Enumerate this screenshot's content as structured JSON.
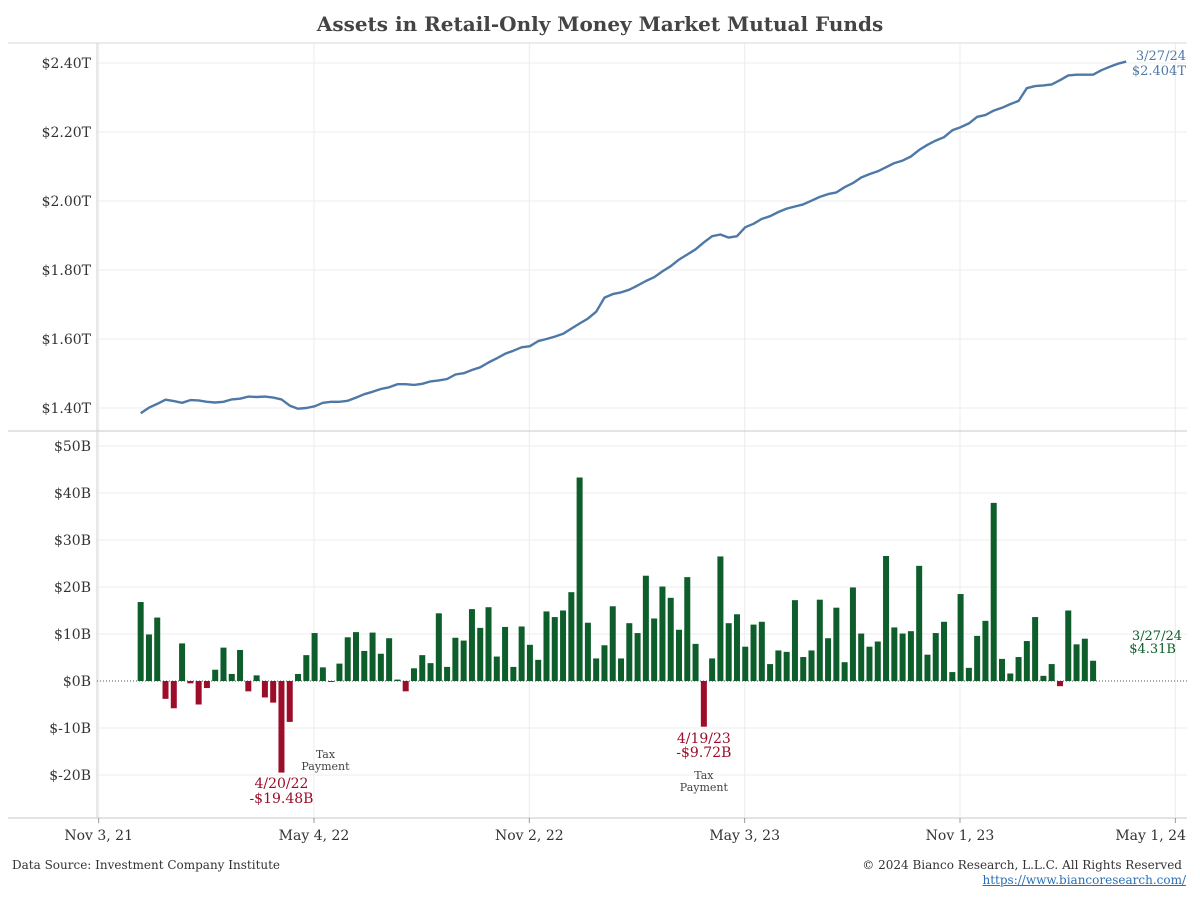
{
  "title": "Assets in Retail-Only Money Market Mutual Funds",
  "footer": {
    "source": "Data Source: Investment Company Institute",
    "copyright": "© 2024 Bianco Research, L.L.C. All Rights Reserved",
    "url": "https://www.biancoresearch.com/"
  },
  "colors": {
    "line": "#4e79a7",
    "positive": "#0d5e2a",
    "negative": "#9b0d28",
    "grid": "#ececec",
    "axis": "#888888"
  },
  "chart_data": [
    {
      "type": "line",
      "title": "Assets in Retail-Only Money Market Mutual Funds",
      "y_tick_labels": [
        "$1.40T",
        "$1.60T",
        "$1.80T",
        "$2.00T",
        "$2.20T",
        "$2.40T"
      ],
      "y_ticks": [
        1.4,
        1.6,
        1.8,
        2.0,
        2.2,
        2.4
      ],
      "ylim": [
        1.33,
        2.46
      ],
      "grid": true,
      "x_start": "2021-11-03",
      "series": [
        {
          "values": [
            1.385,
            1.401,
            1.412,
            1.424,
            1.42,
            1.415,
            1.423,
            1.422,
            1.418,
            1.416,
            1.418,
            1.425,
            1.427,
            1.433,
            1.432,
            1.433,
            1.43,
            1.425,
            1.407,
            1.398,
            1.4,
            1.405,
            1.415,
            1.418,
            1.418,
            1.421,
            1.43,
            1.44,
            1.447,
            1.455,
            1.46,
            1.469,
            1.469,
            1.467,
            1.47,
            1.477,
            1.48,
            1.484,
            1.497,
            1.501,
            1.51,
            1.518,
            1.532,
            1.544,
            1.557,
            1.566,
            1.576,
            1.579,
            1.594,
            1.6,
            1.607,
            1.615,
            1.63,
            1.645,
            1.659,
            1.679,
            1.72,
            1.73,
            1.735,
            1.743,
            1.755,
            1.768,
            1.779,
            1.796,
            1.811,
            1.83,
            1.845,
            1.86,
            1.88,
            1.898,
            1.903,
            1.894,
            1.898,
            1.924,
            1.934,
            1.948,
            1.956,
            1.968,
            1.978,
            1.984,
            1.99,
            2.001,
            2.012,
            2.02,
            2.025,
            2.04,
            2.052,
            2.068,
            2.078,
            2.086,
            2.098,
            2.11,
            2.117,
            2.129,
            2.148,
            2.163,
            2.175,
            2.185,
            2.205,
            2.214,
            2.225,
            2.244,
            2.249,
            2.262,
            2.27,
            2.281,
            2.29,
            2.327,
            2.333,
            2.335,
            2.338,
            2.35,
            2.364,
            2.366,
            2.366,
            2.366,
            2.379,
            2.389,
            2.398,
            2.404
          ]
        }
      ],
      "end_annotation": {
        "date": "3/27/24",
        "value": "$2.404T"
      }
    },
    {
      "type": "bar",
      "y_tick_labels": [
        "$-20B",
        "$-10B",
        "$0B",
        "$10B",
        "$20B",
        "$30B",
        "$40B",
        "$50B"
      ],
      "y_ticks": [
        -20,
        -10,
        0,
        10,
        20,
        30,
        40,
        50
      ],
      "ylim": [
        -29,
        52
      ],
      "grid": true,
      "x_tick_labels": [
        "Nov 3, 21",
        "May 4, 22",
        "Nov 2, 22",
        "May 3, 23",
        "Nov 1, 23",
        "May 1, 24"
      ],
      "x_ticks": [
        "2021-11-03",
        "2022-05-04",
        "2022-11-02",
        "2023-05-03",
        "2023-11-01",
        "2024-05-01"
      ],
      "x_start": "2021-11-03",
      "series": [
        {
          "values": [
            16.8,
            9.9,
            13.5,
            -3.8,
            -5.8,
            8.0,
            -0.5,
            -5.0,
            -1.5,
            2.4,
            7.1,
            1.5,
            6.6,
            -2.2,
            1.2,
            -3.5,
            -4.6,
            -19.48,
            -8.7,
            1.5,
            5.5,
            10.2,
            2.9,
            -0.2,
            3.7,
            9.3,
            10.4,
            6.4,
            10.3,
            5.8,
            9.1,
            0.3,
            -2.2,
            2.7,
            5.5,
            3.8,
            14.4,
            3.0,
            9.2,
            8.6,
            15.3,
            11.3,
            15.7,
            5.2,
            11.5,
            3.0,
            11.6,
            7.7,
            4.5,
            14.8,
            13.6,
            15.0,
            18.9,
            43.3,
            12.4,
            4.8,
            7.6,
            15.9,
            4.8,
            12.3,
            10.2,
            22.4,
            13.3,
            20.1,
            17.7,
            10.9,
            22.1,
            7.9,
            -9.72,
            4.8,
            26.5,
            12.3,
            14.2,
            7.3,
            12.0,
            12.6,
            3.6,
            6.5,
            6.2,
            17.2,
            5.1,
            6.5,
            17.3,
            9.1,
            15.6,
            4.0,
            19.9,
            10.1,
            7.3,
            8.4,
            26.6,
            11.4,
            10.1,
            10.6,
            24.5,
            5.6,
            10.2,
            12.6,
            1.9,
            18.5,
            2.8,
            9.6,
            12.8,
            37.9,
            4.7,
            1.6,
            5.1,
            8.5,
            13.6,
            1.1,
            3.6,
            -1.1,
            15.0,
            7.8,
            9.0,
            4.31
          ]
        }
      ],
      "annotations": [
        {
          "label": "4/20/22",
          "value": "-$19.48B",
          "note": "Tax Payment"
        },
        {
          "label": "4/19/23",
          "value": "-$9.72B",
          "note": "Tax Payment"
        },
        {
          "label": "3/27/24",
          "value": "$4.31B"
        }
      ]
    }
  ]
}
